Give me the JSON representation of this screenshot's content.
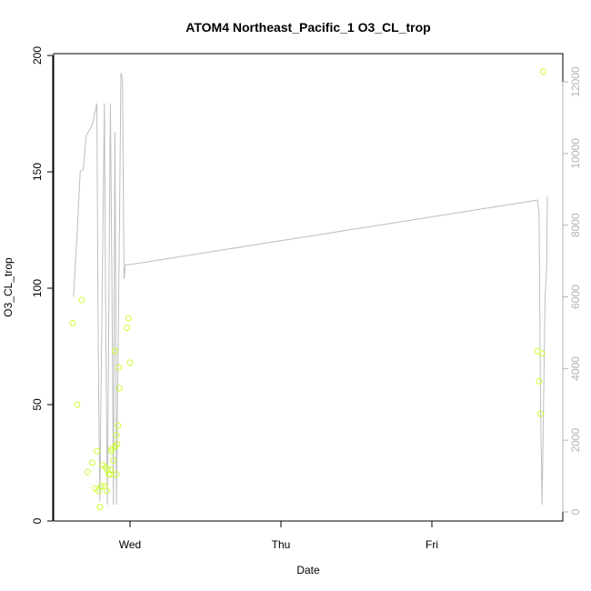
{
  "chart_data": {
    "type": "line+scatter",
    "title": "ATOM4 Northeast_Pacific_1 O3_CL_trop",
    "xlabel": "Date",
    "ylabel": "O3_CL_trop",
    "x_ticks": [
      "Wed",
      "Thu",
      "Fri"
    ],
    "x_axis_unit": "days (Wed = 0, Thu = 1, Fri = 2)",
    "xlim": [
      -0.43,
      2.86
    ],
    "ylim_left": [
      0,
      200
    ],
    "left_ticks": [
      0,
      50,
      100,
      150,
      200
    ],
    "ylim_right": [
      0,
      12500
    ],
    "right_ticks": [
      0,
      2000,
      4000,
      6000,
      8000,
      10000,
      12000
    ],
    "colors": {
      "line": "#bebebe",
      "points": "#ccff33",
      "right_axis": "#b3b3b3",
      "axes": "#000000"
    },
    "line_series": {
      "axis": "right",
      "x": [
        -0.375,
        -0.35,
        -0.33,
        -0.31,
        -0.29,
        -0.25,
        -0.22,
        -0.21,
        -0.2,
        -0.19,
        -0.17,
        -0.16,
        -0.15,
        -0.14,
        -0.13,
        -0.12,
        -0.11,
        -0.1,
        -0.095,
        -0.09,
        -0.08,
        -0.07,
        -0.06,
        -0.05,
        -0.04,
        -0.03,
        -0.02,
        -0.01,
        0.0,
        2.7,
        2.71,
        2.72,
        2.73,
        2.74,
        2.75,
        2.76,
        2.765
      ],
      "values": [
        6000,
        7800,
        9500,
        9550,
        10500,
        10800,
        11400,
        4500,
        300,
        4200,
        11400,
        5000,
        200,
        6000,
        11400,
        6500,
        200,
        10600,
        6500,
        200,
        4000,
        8000,
        12250,
        12100,
        6500,
        6900,
        6900,
        6900,
        6900,
        8700,
        8300,
        3000,
        200,
        3000,
        6000,
        6800,
        8800
      ]
    },
    "point_series": {
      "axis": "left",
      "x": [
        -0.38,
        -0.35,
        -0.32,
        -0.28,
        -0.25,
        -0.22,
        -0.21,
        -0.2,
        -0.19,
        -0.18,
        -0.17,
        -0.16,
        -0.155,
        -0.15,
        -0.14,
        -0.13,
        -0.125,
        -0.12,
        -0.11,
        -0.1,
        -0.09,
        -0.085,
        -0.08,
        -0.075,
        -0.07,
        -0.02,
        -0.01,
        0.0,
        2.7,
        2.71,
        2.72,
        2.73,
        2.74,
        -0.23,
        -0.1,
        -0.09,
        -0.13
      ],
      "values": [
        85,
        50,
        95,
        21,
        25,
        30,
        13,
        6,
        15,
        24,
        15,
        23,
        13,
        22,
        20,
        22,
        30,
        31,
        26,
        73,
        37,
        33,
        41,
        66,
        57,
        83,
        87,
        68,
        73,
        60,
        46,
        72,
        193,
        14,
        32,
        20,
        20
      ]
    }
  }
}
